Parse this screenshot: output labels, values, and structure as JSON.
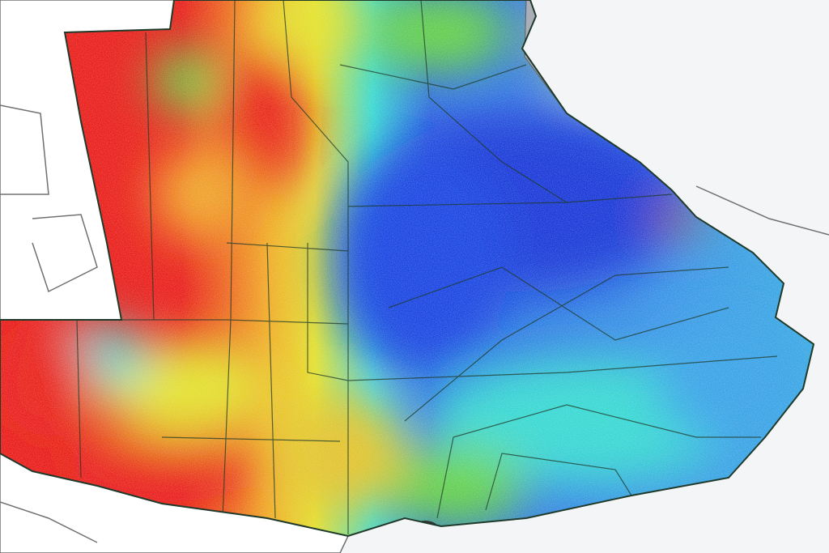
{
  "map": {
    "palette": {
      "background": "#f4f5f7",
      "outside_region": "#ffffff",
      "border": "#1f3a2a",
      "neighbor_border": "#707070",
      "river": "#a9aeb8",
      "very_high": "#e8120e",
      "high": "#f0a21a",
      "mid_high": "#e2e020",
      "mid": "#5fd23a",
      "mid_low": "#2fd6d0",
      "low": "#2f8ee6",
      "very_low": "#0a2fd6"
    }
  }
}
